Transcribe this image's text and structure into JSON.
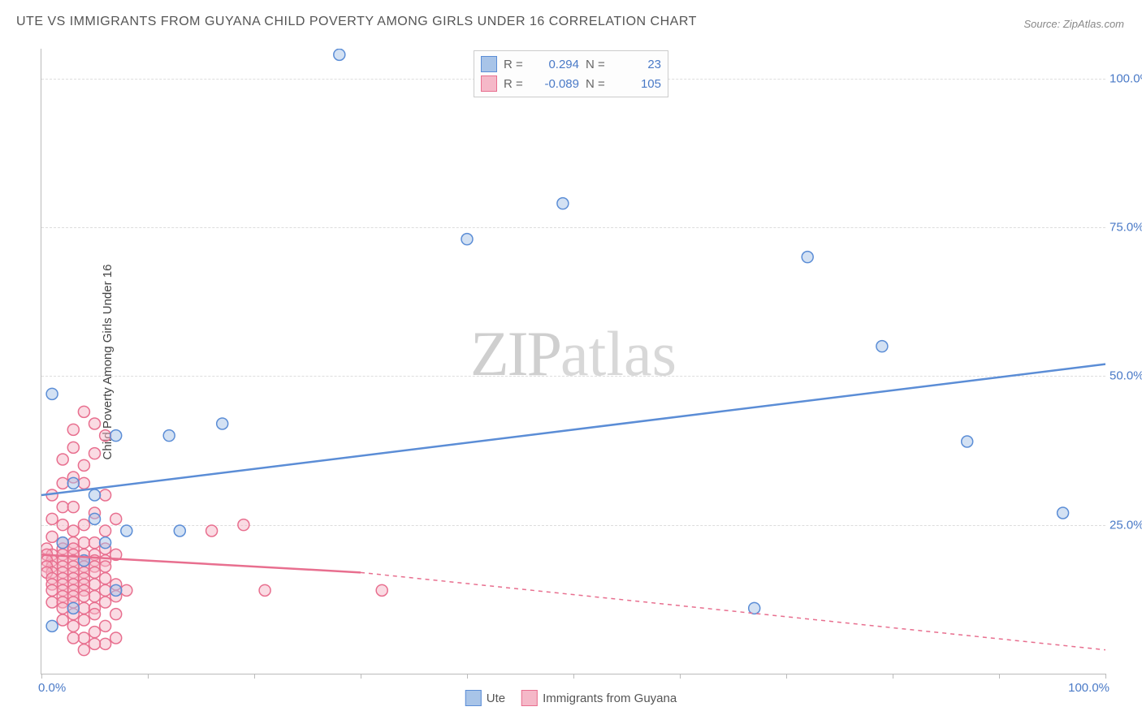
{
  "title": "UTE VS IMMIGRANTS FROM GUYANA CHILD POVERTY AMONG GIRLS UNDER 16 CORRELATION CHART",
  "source": "Source: ZipAtlas.com",
  "y_axis_title": "Child Poverty Among Girls Under 16",
  "watermark": {
    "part1": "ZIP",
    "part2": "atlas"
  },
  "chart": {
    "type": "scatter",
    "xlim": [
      0,
      100
    ],
    "ylim": [
      0,
      105
    ],
    "y_ticks": [
      25,
      50,
      75,
      100
    ],
    "y_tick_labels": [
      "25.0%",
      "50.0%",
      "75.0%",
      "100.0%"
    ],
    "x_ticks": [
      0,
      10,
      20,
      30,
      40,
      50,
      60,
      70,
      80,
      90,
      100
    ],
    "x_tick_labels": {
      "0": "0.0%",
      "100": "100.0%"
    },
    "background_color": "#ffffff",
    "grid_color": "#dddddd",
    "axis_color": "#bbbbbb",
    "tick_label_color": "#4a7ac7",
    "marker_radius": 7,
    "marker_stroke_width": 1.5,
    "marker_fill_opacity": 0.25,
    "line_width": 2.5,
    "series": [
      {
        "name": "Ute",
        "color": "#5b8dd6",
        "fill": "#a8c4e8",
        "R": "0.294",
        "N": "23",
        "points": [
          [
            28,
            104
          ],
          [
            1,
            47
          ],
          [
            17,
            42
          ],
          [
            12,
            40
          ],
          [
            7,
            40
          ],
          [
            3,
            32
          ],
          [
            5,
            30
          ],
          [
            5,
            26
          ],
          [
            8,
            24
          ],
          [
            13,
            24
          ],
          [
            2,
            22
          ],
          [
            6,
            22
          ],
          [
            4,
            19
          ],
          [
            40,
            73
          ],
          [
            49,
            79
          ],
          [
            79,
            55
          ],
          [
            87,
            39
          ],
          [
            67,
            11
          ],
          [
            96,
            27
          ],
          [
            7,
            14
          ],
          [
            3,
            11
          ],
          [
            1,
            8
          ],
          [
            72,
            70
          ]
        ],
        "trend": {
          "x1": 0,
          "y1": 30,
          "x2": 100,
          "y2": 52,
          "style": "solid"
        }
      },
      {
        "name": "Immigrants from Guyana",
        "color": "#e86f8f",
        "fill": "#f5b8c8",
        "R": "-0.089",
        "N": "105",
        "points": [
          [
            4,
            44
          ],
          [
            3,
            41
          ],
          [
            5,
            42
          ],
          [
            6,
            40
          ],
          [
            3,
            38
          ],
          [
            5,
            37
          ],
          [
            2,
            36
          ],
          [
            4,
            35
          ],
          [
            3,
            33
          ],
          [
            2,
            32
          ],
          [
            4,
            32
          ],
          [
            6,
            30
          ],
          [
            1,
            30
          ],
          [
            2,
            28
          ],
          [
            3,
            28
          ],
          [
            5,
            27
          ],
          [
            7,
            26
          ],
          [
            1,
            26
          ],
          [
            2,
            25
          ],
          [
            4,
            25
          ],
          [
            3,
            24
          ],
          [
            6,
            24
          ],
          [
            19,
            25
          ],
          [
            16,
            24
          ],
          [
            1,
            23
          ],
          [
            2,
            22
          ],
          [
            3,
            22
          ],
          [
            4,
            22
          ],
          [
            5,
            22
          ],
          [
            6,
            21
          ],
          [
            0.5,
            21
          ],
          [
            2,
            21
          ],
          [
            3,
            21
          ],
          [
            4,
            20
          ],
          [
            5,
            20
          ],
          [
            7,
            20
          ],
          [
            1,
            20
          ],
          [
            2,
            20
          ],
          [
            0.5,
            20
          ],
          [
            3,
            20
          ],
          [
            4,
            19
          ],
          [
            5,
            19
          ],
          [
            6,
            19
          ],
          [
            2,
            19
          ],
          [
            1,
            19
          ],
          [
            3,
            19
          ],
          [
            0.5,
            19
          ],
          [
            4,
            18
          ],
          [
            5,
            18
          ],
          [
            2,
            18
          ],
          [
            1,
            18
          ],
          [
            3,
            18
          ],
          [
            6,
            18
          ],
          [
            0.5,
            18
          ],
          [
            2,
            17
          ],
          [
            4,
            17
          ],
          [
            3,
            17
          ],
          [
            1,
            17
          ],
          [
            5,
            17
          ],
          [
            0.5,
            17
          ],
          [
            2,
            16
          ],
          [
            3,
            16
          ],
          [
            4,
            16
          ],
          [
            6,
            16
          ],
          [
            1,
            16
          ],
          [
            3,
            15
          ],
          [
            2,
            15
          ],
          [
            5,
            15
          ],
          [
            4,
            15
          ],
          [
            7,
            15
          ],
          [
            1,
            15
          ],
          [
            2,
            14
          ],
          [
            3,
            14
          ],
          [
            4,
            14
          ],
          [
            6,
            14
          ],
          [
            8,
            14
          ],
          [
            1,
            14
          ],
          [
            32,
            14
          ],
          [
            21,
            14
          ],
          [
            2,
            13
          ],
          [
            3,
            13
          ],
          [
            5,
            13
          ],
          [
            7,
            13
          ],
          [
            4,
            13
          ],
          [
            1,
            12
          ],
          [
            2,
            12
          ],
          [
            3,
            12
          ],
          [
            6,
            12
          ],
          [
            4,
            11
          ],
          [
            5,
            11
          ],
          [
            2,
            11
          ],
          [
            3,
            10
          ],
          [
            7,
            10
          ],
          [
            5,
            10
          ],
          [
            4,
            9
          ],
          [
            2,
            9
          ],
          [
            6,
            8
          ],
          [
            3,
            8
          ],
          [
            5,
            7
          ],
          [
            4,
            6
          ],
          [
            7,
            6
          ],
          [
            3,
            6
          ],
          [
            6,
            5
          ],
          [
            5,
            5
          ],
          [
            4,
            4
          ]
        ],
        "trend": {
          "x1": 0,
          "y1": 20,
          "x2": 30,
          "y2": 17,
          "style": "solid"
        },
        "trend_ext": {
          "x1": 30,
          "y1": 17,
          "x2": 100,
          "y2": 4,
          "style": "dashed"
        }
      }
    ]
  },
  "legend_top": [
    {
      "swatch_fill": "#a8c4e8",
      "swatch_border": "#5b8dd6",
      "r_label": "R =",
      "r_value": "0.294",
      "n_label": "N =",
      "n_value": "23"
    },
    {
      "swatch_fill": "#f5b8c8",
      "swatch_border": "#e86f8f",
      "r_label": "R =",
      "r_value": "-0.089",
      "n_label": "N =",
      "n_value": "105"
    }
  ],
  "legend_bottom": [
    {
      "swatch_fill": "#a8c4e8",
      "swatch_border": "#5b8dd6",
      "label": "Ute"
    },
    {
      "swatch_fill": "#f5b8c8",
      "swatch_border": "#e86f8f",
      "label": "Immigrants from Guyana"
    }
  ]
}
